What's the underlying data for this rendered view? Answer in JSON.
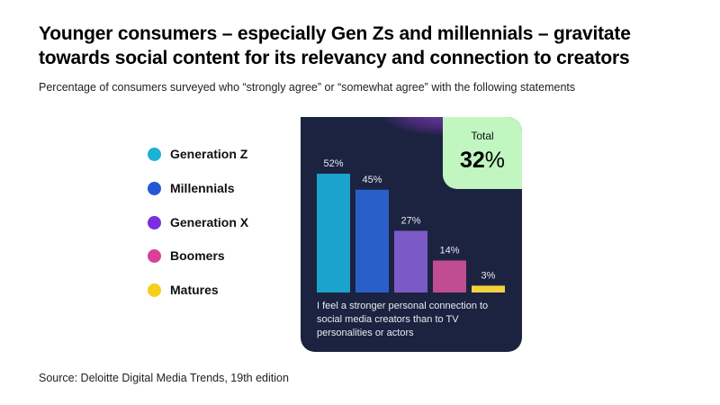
{
  "title": "Younger consumers – especially Gen Zs and millennials – gravitate towards social content for its relevancy and connection to creators",
  "subtitle": "Percentage of consumers surveyed who “strongly agree” or “somewhat agree” with the following statements",
  "source": "Source: Deloitte Digital Media Trends, 19th edition",
  "total": {
    "label": "Total",
    "value": "32",
    "unit": "%"
  },
  "caption": "I feel a stronger personal connection to social media creators than to TV personalities or actors",
  "legend": [
    {
      "label": "Generation Z",
      "color": "#1ab2d6"
    },
    {
      "label": "Millennials",
      "color": "#2457d6"
    },
    {
      "label": "Generation X",
      "color": "#7a2ee0"
    },
    {
      "label": "Boomers",
      "color": "#d9409a"
    },
    {
      "label": "Matures",
      "color": "#f5cf1c"
    }
  ],
  "chart_data": {
    "type": "bar",
    "title": "I feel a stronger personal connection to social media creators than to TV personalities or actors",
    "categories": [
      "Generation Z",
      "Millennials",
      "Generation X",
      "Boomers",
      "Matures"
    ],
    "values": [
      52,
      45,
      27,
      14,
      3
    ],
    "data_labels": [
      "52%",
      "45%",
      "27%",
      "14%",
      "3%"
    ],
    "colors": [
      "#1aa3cc",
      "#2a5fc9",
      "#7b5ac8",
      "#c04c92",
      "#f2d23c"
    ],
    "ylim": [
      0,
      52
    ],
    "total": 32
  }
}
